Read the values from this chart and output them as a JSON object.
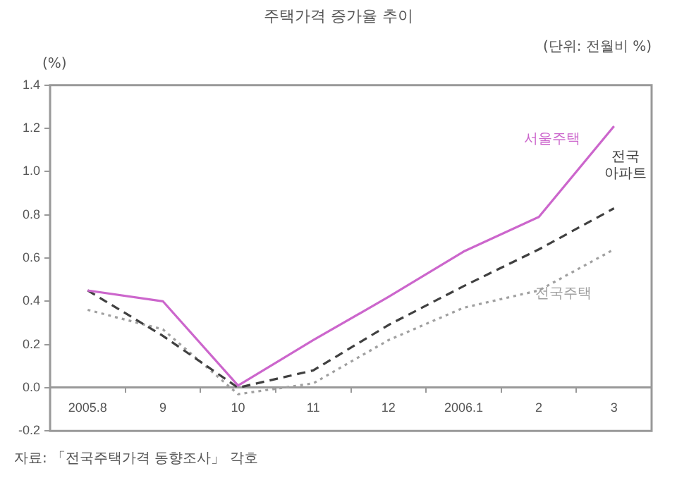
{
  "chart_data": {
    "type": "line",
    "title": "주택가격 증가율 추이",
    "subtitle": "(단위: 전월비 %)",
    "ylabel": "(%)",
    "categories": [
      "2005.8",
      "9",
      "10",
      "11",
      "12",
      "2006.1",
      "2",
      "3"
    ],
    "series": [
      {
        "name": "서울주택",
        "color": "#cc66cc",
        "line_style": "solid",
        "values": [
          0.45,
          0.4,
          0.01,
          0.22,
          0.42,
          0.63,
          0.79,
          1.21
        ]
      },
      {
        "name": "전국 아파트",
        "color": "#404040",
        "line_style": "dashed",
        "values": [
          0.45,
          0.24,
          0.0,
          0.08,
          0.29,
          0.47,
          0.64,
          0.83
        ]
      },
      {
        "name": "전국주택",
        "color": "#a0a0a0",
        "line_style": "dotted",
        "values": [
          0.36,
          0.27,
          -0.03,
          0.02,
          0.22,
          0.37,
          0.45,
          0.64
        ]
      }
    ],
    "ylim": [
      -0.2,
      1.4
    ],
    "yticks": [
      {
        "value": -0.2,
        "label": "-0.2"
      },
      {
        "value": 0,
        "label": "0.0"
      },
      {
        "value": 0.2,
        "label": "0.2"
      },
      {
        "value": 0.4,
        "label": "0.4"
      },
      {
        "value": 0.6,
        "label": "0.6"
      },
      {
        "value": 0.8,
        "label": "0.8"
      },
      {
        "value": 1,
        "label": "1.0"
      },
      {
        "value": 1.2,
        "label": "1.2"
      },
      {
        "value": 1.4,
        "label": "1.4"
      }
    ],
    "grid": false,
    "legend": false,
    "marker": "none",
    "annotations": [
      "자료: 「전국주택가격 동향조사」 각호"
    ]
  }
}
